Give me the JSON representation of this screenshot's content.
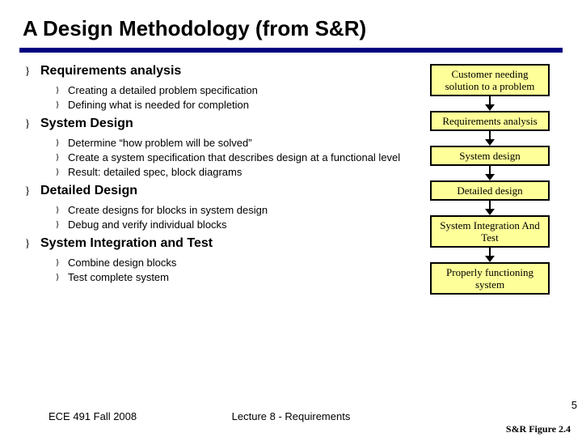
{
  "title": "A Design Methodology (from S&R)",
  "bullet_glyph": "}",
  "sections": [
    {
      "title": "Requirements analysis",
      "items": [
        "Creating a detailed problem specification",
        "Defining what is needed for completion"
      ]
    },
    {
      "title": "System Design",
      "items": [
        "Determine “how problem will be solved”",
        "Create a system specification that describes design at a functional level",
        "Result: detailed spec, block diagrams"
      ]
    },
    {
      "title": "Detailed Design",
      "items": [
        "Create designs for blocks in system design",
        "Debug and verify individual blocks"
      ]
    },
    {
      "title": "System Integration and Test",
      "items": [
        "Combine design blocks",
        "Test complete system"
      ]
    }
  ],
  "flow": {
    "boxes": [
      "Customer needing solution to a problem",
      "Requirements analysis",
      "System design",
      "Detailed design",
      "System Integration And Test",
      "Properly functioning system"
    ],
    "box_fill": "#ffff99",
    "box_border": "#000000",
    "caption": "S&R Figure 2.4"
  },
  "footer": {
    "left": "ECE 491 Fall 2008",
    "center": "Lecture 8 - Requirements",
    "page": "5"
  },
  "colors": {
    "hr": "#000080",
    "background": "#ffffff"
  }
}
